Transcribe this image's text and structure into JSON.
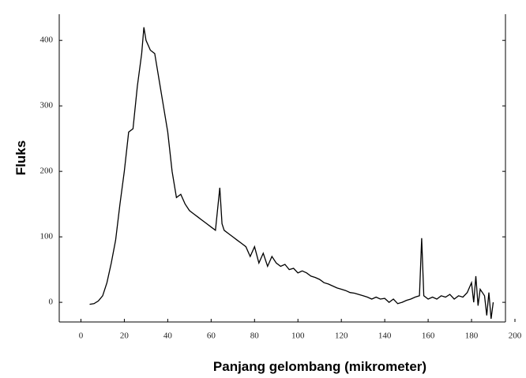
{
  "chart_data": {
    "type": "line",
    "x_label": "Panjang gelombang (mikrometer)",
    "y_label": "Fluks",
    "color": "#000000",
    "xlim": [
      -10,
      200
    ],
    "ylim": [
      -30,
      440
    ],
    "xticks": [
      0,
      20,
      40,
      60,
      80,
      100,
      120,
      140,
      160,
      180,
      200
    ],
    "yticks": [
      0,
      100,
      200,
      300,
      400
    ],
    "x": [
      4,
      6,
      8,
      10,
      12,
      14,
      16,
      18,
      20,
      22,
      24,
      26,
      28,
      29,
      30,
      32,
      34,
      36,
      38,
      40,
      42,
      44,
      46,
      48,
      50,
      52,
      54,
      56,
      58,
      60,
      62,
      64,
      65,
      66,
      68,
      70,
      72,
      74,
      76,
      78,
      80,
      82,
      84,
      86,
      88,
      90,
      92,
      94,
      96,
      98,
      100,
      102,
      104,
      106,
      108,
      110,
      112,
      114,
      116,
      118,
      120,
      122,
      124,
      126,
      128,
      130,
      132,
      134,
      136,
      138,
      140,
      142,
      144,
      146,
      148,
      150,
      152,
      154,
      156,
      157,
      158,
      160,
      162,
      164,
      166,
      168,
      170,
      172,
      174,
      176,
      178,
      180,
      181,
      182,
      183,
      184,
      186,
      187,
      188,
      189,
      190
    ],
    "values": [
      -3,
      -2,
      2,
      10,
      30,
      60,
      95,
      150,
      200,
      260,
      265,
      330,
      380,
      420,
      400,
      385,
      380,
      340,
      300,
      260,
      200,
      160,
      165,
      150,
      140,
      135,
      130,
      125,
      120,
      115,
      110,
      175,
      120,
      110,
      105,
      100,
      95,
      90,
      85,
      70,
      85,
      60,
      75,
      55,
      70,
      60,
      55,
      58,
      50,
      52,
      45,
      48,
      45,
      40,
      38,
      35,
      30,
      28,
      25,
      22,
      20,
      18,
      15,
      14,
      12,
      10,
      8,
      5,
      8,
      5,
      6,
      0,
      5,
      -2,
      0,
      3,
      5,
      8,
      10,
      98,
      10,
      5,
      8,
      5,
      10,
      8,
      12,
      5,
      10,
      8,
      15,
      30,
      0,
      40,
      -5,
      20,
      10,
      -20,
      15,
      -25,
      0
    ]
  }
}
